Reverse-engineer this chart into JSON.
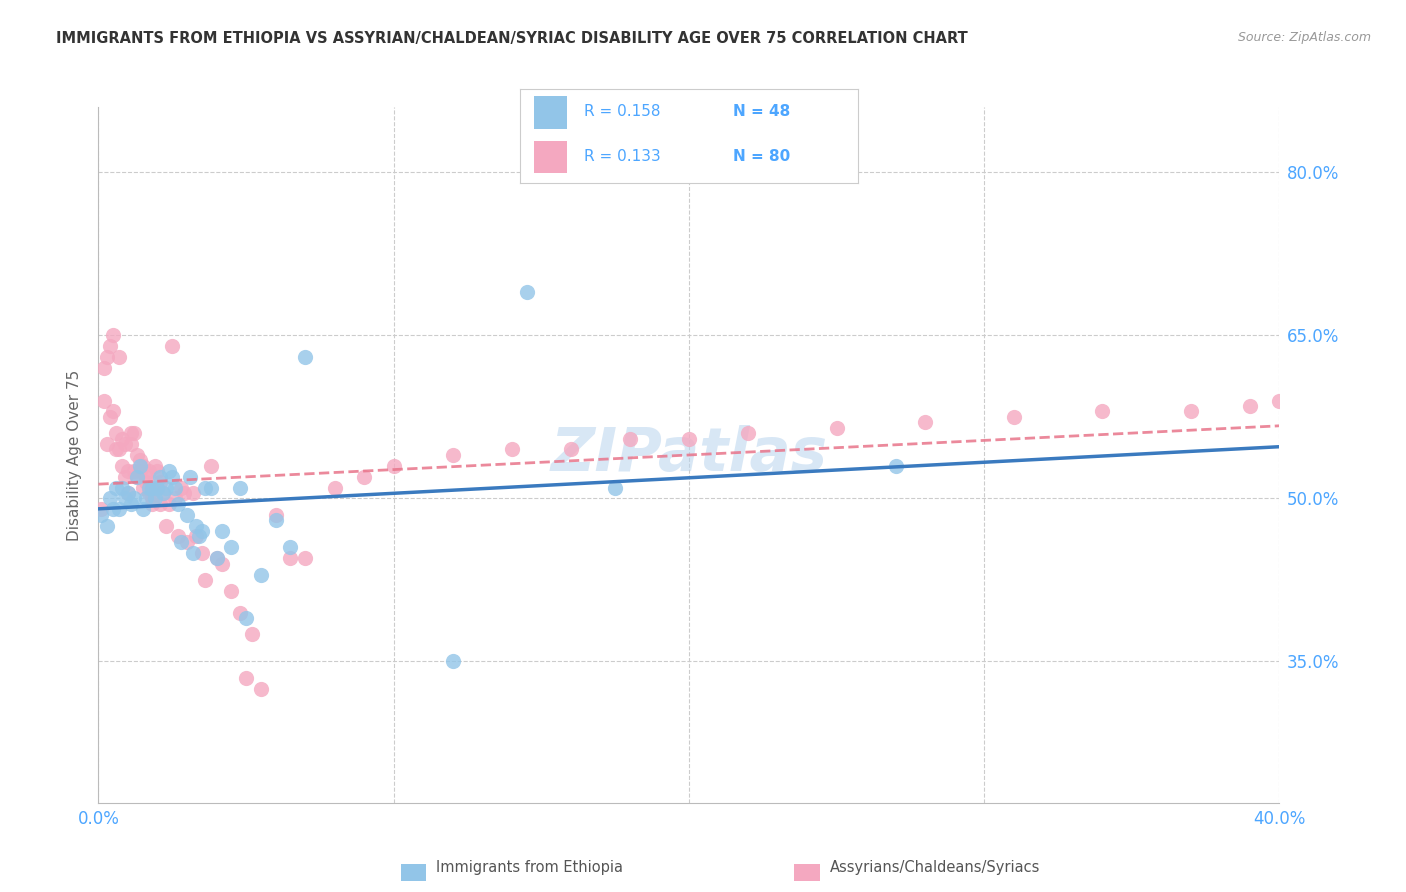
{
  "title": "IMMIGRANTS FROM ETHIOPIA VS ASSYRIAN/CHALDEAN/SYRIAC DISABILITY AGE OVER 75 CORRELATION CHART",
  "source": "Source: ZipAtlas.com",
  "ylabel": "Disability Age Over 75",
  "ytick_values": [
    0.8,
    0.65,
    0.5,
    0.35
  ],
  "xmin": 0.0,
  "xmax": 0.4,
  "ymin": 0.22,
  "ymax": 0.86,
  "legend_R1": "R = 0.158",
  "legend_N1": "N = 48",
  "legend_R2": "R = 0.133",
  "legend_N2": "N = 80",
  "color_blue": "#92c5e8",
  "color_pink": "#f4a8c0",
  "color_blue_line": "#3a7abf",
  "color_pink_line": "#e8748a",
  "watermark": "ZIPatlas",
  "footer_label1": "Immigrants from Ethiopia",
  "footer_label2": "Assyrians/Chaldeans/Syriacs",
  "blue_scatter_x": [
    0.001,
    0.003,
    0.004,
    0.005,
    0.006,
    0.007,
    0.008,
    0.009,
    0.01,
    0.011,
    0.012,
    0.013,
    0.014,
    0.015,
    0.016,
    0.017,
    0.018,
    0.019,
    0.02,
    0.021,
    0.022,
    0.023,
    0.024,
    0.025,
    0.026,
    0.027,
    0.028,
    0.03,
    0.031,
    0.032,
    0.033,
    0.034,
    0.035,
    0.036,
    0.038,
    0.04,
    0.042,
    0.045,
    0.048,
    0.05,
    0.055,
    0.06,
    0.065,
    0.07,
    0.12,
    0.145,
    0.175,
    0.27
  ],
  "blue_scatter_y": [
    0.485,
    0.475,
    0.5,
    0.49,
    0.51,
    0.49,
    0.51,
    0.5,
    0.505,
    0.495,
    0.5,
    0.52,
    0.53,
    0.49,
    0.5,
    0.51,
    0.51,
    0.5,
    0.51,
    0.52,
    0.505,
    0.51,
    0.525,
    0.52,
    0.51,
    0.495,
    0.46,
    0.485,
    0.52,
    0.45,
    0.475,
    0.465,
    0.47,
    0.51,
    0.51,
    0.445,
    0.47,
    0.455,
    0.51,
    0.39,
    0.43,
    0.48,
    0.455,
    0.63,
    0.35,
    0.69,
    0.51,
    0.53
  ],
  "pink_scatter_x": [
    0.001,
    0.002,
    0.002,
    0.003,
    0.003,
    0.004,
    0.004,
    0.005,
    0.005,
    0.006,
    0.006,
    0.007,
    0.007,
    0.008,
    0.008,
    0.009,
    0.009,
    0.01,
    0.01,
    0.011,
    0.011,
    0.012,
    0.012,
    0.013,
    0.013,
    0.014,
    0.014,
    0.015,
    0.015,
    0.016,
    0.016,
    0.017,
    0.017,
    0.018,
    0.018,
    0.019,
    0.02,
    0.02,
    0.021,
    0.021,
    0.022,
    0.023,
    0.024,
    0.025,
    0.026,
    0.027,
    0.028,
    0.029,
    0.03,
    0.032,
    0.033,
    0.035,
    0.036,
    0.038,
    0.04,
    0.042,
    0.045,
    0.048,
    0.05,
    0.052,
    0.055,
    0.06,
    0.065,
    0.07,
    0.08,
    0.09,
    0.1,
    0.12,
    0.14,
    0.16,
    0.18,
    0.2,
    0.22,
    0.25,
    0.28,
    0.31,
    0.34,
    0.37,
    0.39,
    0.4
  ],
  "pink_scatter_y": [
    0.49,
    0.62,
    0.59,
    0.63,
    0.55,
    0.64,
    0.575,
    0.65,
    0.58,
    0.56,
    0.545,
    0.545,
    0.63,
    0.555,
    0.53,
    0.55,
    0.52,
    0.525,
    0.505,
    0.56,
    0.55,
    0.525,
    0.56,
    0.54,
    0.52,
    0.535,
    0.525,
    0.53,
    0.51,
    0.515,
    0.52,
    0.525,
    0.505,
    0.495,
    0.5,
    0.53,
    0.525,
    0.51,
    0.495,
    0.515,
    0.505,
    0.475,
    0.495,
    0.64,
    0.5,
    0.465,
    0.51,
    0.505,
    0.46,
    0.505,
    0.465,
    0.45,
    0.425,
    0.53,
    0.445,
    0.44,
    0.415,
    0.395,
    0.335,
    0.375,
    0.325,
    0.485,
    0.445,
    0.445,
    0.51,
    0.52,
    0.53,
    0.54,
    0.545,
    0.545,
    0.555,
    0.555,
    0.56,
    0.565,
    0.57,
    0.575,
    0.58,
    0.58,
    0.585,
    0.59
  ],
  "grid_color": "#cccccc",
  "bg_color": "#ffffff",
  "title_color": "#333333",
  "axis_color": "#4da6ff"
}
